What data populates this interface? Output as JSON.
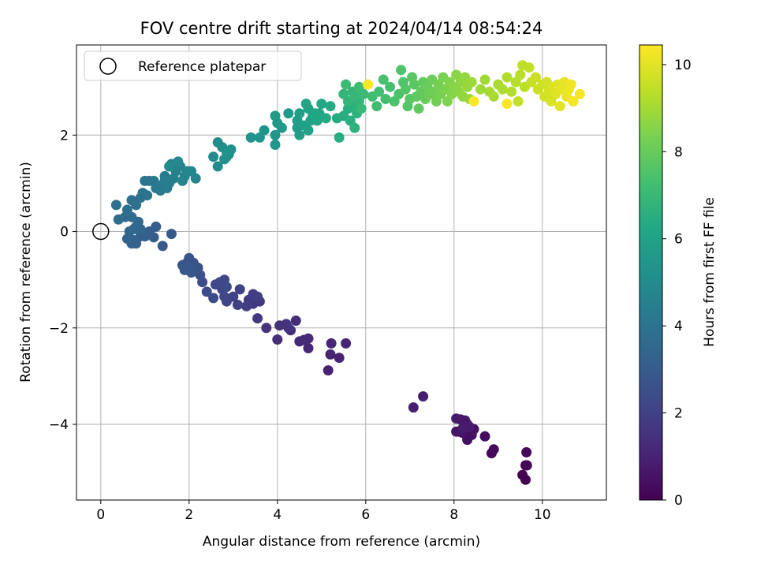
{
  "chart_data": {
    "type": "scatter",
    "title": "FOV centre drift starting at 2024/04/14 08:54:24",
    "xlabel": "Angular distance from reference (arcmin)",
    "ylabel": "Rotation from reference (arcmin)",
    "xlim": [
      -0.55,
      11.45
    ],
    "ylim": [
      -5.57,
      3.87
    ],
    "xticks": [
      0,
      2,
      4,
      6,
      8,
      10
    ],
    "yticks": [
      2,
      0,
      -2,
      -4
    ],
    "ytick_labels": [
      "2",
      "0",
      "−2",
      "−4"
    ],
    "grid": true,
    "legend": {
      "placement": "upper-left",
      "label": "Reference platepar"
    },
    "reference_point": {
      "x": 0,
      "y": 0
    },
    "colorbar": {
      "label": "Hours from first FF file",
      "range": [
        0,
        10.45
      ],
      "ticks": [
        0,
        2,
        4,
        6,
        8,
        10
      ],
      "colormap": "viridis"
    },
    "series": [
      {
        "points": [
          [
            9.62,
            -5.15
          ],
          [
            9.55,
            -5.05
          ],
          [
            9.65,
            -4.85
          ],
          [
            9.62,
            -4.85
          ],
          [
            9.64,
            -4.58
          ],
          [
            8.85,
            -4.6
          ],
          [
            8.9,
            -4.52
          ],
          [
            8.7,
            -4.25
          ],
          [
            8.3,
            -4.32
          ],
          [
            8.4,
            -4.22
          ],
          [
            8.45,
            -4.1
          ],
          [
            8.1,
            -4.15
          ],
          [
            8.2,
            -4.18
          ],
          [
            8.05,
            -4.15
          ],
          [
            8.3,
            -4.0
          ],
          [
            8.15,
            -3.9
          ],
          [
            8.25,
            -3.92
          ],
          [
            8.35,
            -4.05
          ],
          [
            8.05,
            -3.88
          ],
          [
            8.2,
            -4.08
          ],
          [
            7.3,
            -3.42
          ],
          [
            7.08,
            -3.65
          ],
          [
            5.15,
            -2.88
          ],
          [
            5.4,
            -2.62
          ],
          [
            5.2,
            -2.55
          ],
          [
            5.22,
            -2.32
          ],
          [
            5.55,
            -2.32
          ],
          [
            4.7,
            -2.42
          ],
          [
            4.5,
            -2.28
          ],
          [
            4.6,
            -2.25
          ],
          [
            4.7,
            -2.22
          ],
          [
            4.42,
            -1.85
          ],
          [
            4.0,
            -2.24
          ],
          [
            4.3,
            -2.05
          ],
          [
            4.2,
            -1.92
          ],
          [
            4.05,
            -1.95
          ],
          [
            4.25,
            -2.0
          ],
          [
            3.75,
            -2.0
          ],
          [
            3.55,
            -1.8
          ],
          [
            3.6,
            -1.45
          ],
          [
            3.45,
            -1.5
          ],
          [
            3.5,
            -1.38
          ],
          [
            3.35,
            -1.42
          ],
          [
            3.3,
            -1.55
          ],
          [
            3.45,
            -1.3
          ],
          [
            3.55,
            -1.35
          ],
          [
            3.1,
            -1.52
          ],
          [
            3.15,
            -1.2
          ],
          [
            3.0,
            -1.35
          ],
          [
            2.85,
            -1.45
          ],
          [
            2.8,
            -1.35
          ],
          [
            2.6,
            -1.1
          ],
          [
            2.75,
            -1.2
          ],
          [
            2.7,
            -1.05
          ],
          [
            2.8,
            -1.0
          ],
          [
            2.85,
            -1.15
          ],
          [
            2.55,
            -1.38
          ],
          [
            2.4,
            -1.25
          ],
          [
            2.3,
            -1.05
          ],
          [
            2.25,
            -0.9
          ],
          [
            2.2,
            -0.75
          ],
          [
            2.1,
            -0.65
          ],
          [
            2.0,
            -0.55
          ],
          [
            1.95,
            -0.65
          ],
          [
            1.85,
            -0.7
          ],
          [
            1.9,
            -0.8
          ],
          [
            2.0,
            -0.75
          ],
          [
            2.05,
            -0.85
          ],
          [
            1.6,
            -0.05
          ],
          [
            1.4,
            -0.3
          ],
          [
            1.2,
            -0.12
          ],
          [
            1.25,
            0.1
          ],
          [
            1.1,
            0.0
          ],
          [
            1.0,
            -0.1
          ],
          [
            0.9,
            -0.1
          ],
          [
            0.8,
            -0.25
          ],
          [
            0.7,
            -0.25
          ],
          [
            0.75,
            -0.18
          ],
          [
            0.6,
            -0.15
          ],
          [
            0.65,
            0.0
          ],
          [
            0.8,
            0.1
          ],
          [
            0.9,
            0.05
          ],
          [
            0.75,
            0.05
          ],
          [
            0.85,
            0.2
          ],
          [
            0.7,
            0.3
          ],
          [
            0.55,
            0.3
          ],
          [
            0.4,
            0.25
          ],
          [
            0.35,
            0.55
          ],
          [
            0.6,
            0.45
          ],
          [
            0.7,
            0.65
          ],
          [
            0.8,
            0.55
          ],
          [
            0.9,
            0.7
          ],
          [
            0.95,
            0.8
          ],
          [
            1.05,
            0.75
          ],
          [
            1.1,
            1.05
          ],
          [
            1.0,
            1.05
          ],
          [
            1.2,
            1.05
          ],
          [
            1.25,
            0.9
          ],
          [
            1.3,
            0.95
          ],
          [
            1.35,
            0.85
          ],
          [
            1.45,
            1.15
          ],
          [
            1.5,
            0.9
          ],
          [
            1.55,
            1.0
          ],
          [
            1.45,
            1.05
          ],
          [
            1.65,
            1.1
          ],
          [
            1.6,
            1.4
          ],
          [
            1.7,
            1.25
          ],
          [
            1.8,
            1.35
          ],
          [
            1.9,
            1.15
          ],
          [
            1.95,
            1.25
          ],
          [
            2.05,
            1.25
          ],
          [
            2.15,
            1.1
          ],
          [
            1.85,
            1.05
          ],
          [
            1.75,
            1.45
          ],
          [
            1.55,
            1.35
          ],
          [
            2.65,
            1.35
          ],
          [
            2.55,
            1.55
          ],
          [
            2.65,
            1.85
          ],
          [
            2.75,
            1.75
          ],
          [
            2.85,
            1.55
          ],
          [
            2.9,
            1.6
          ],
          [
            2.95,
            1.7
          ],
          [
            2.8,
            1.5
          ],
          [
            2.85,
            1.65
          ],
          [
            3.4,
            1.95
          ],
          [
            3.6,
            1.95
          ],
          [
            3.7,
            2.1
          ],
          [
            3.95,
            1.8
          ],
          [
            3.95,
            2.0
          ],
          [
            4.1,
            2.15
          ],
          [
            4.0,
            2.25
          ],
          [
            3.95,
            2.4
          ],
          [
            4.25,
            2.45
          ],
          [
            4.45,
            2.15
          ],
          [
            4.5,
            2.0
          ],
          [
            4.45,
            2.3
          ],
          [
            4.5,
            2.45
          ],
          [
            4.6,
            2.2
          ],
          [
            4.7,
            2.1
          ],
          [
            4.75,
            2.3
          ],
          [
            4.8,
            2.4
          ],
          [
            4.7,
            2.55
          ],
          [
            4.65,
            2.65
          ],
          [
            4.85,
            2.45
          ],
          [
            4.9,
            2.3
          ],
          [
            4.95,
            2.45
          ],
          [
            5.0,
            2.65
          ],
          [
            5.1,
            2.35
          ],
          [
            5.2,
            2.6
          ],
          [
            5.35,
            2.35
          ],
          [
            5.4,
            1.95
          ],
          [
            5.5,
            2.4
          ],
          [
            5.6,
            2.55
          ],
          [
            5.65,
            2.3
          ],
          [
            5.7,
            2.6
          ],
          [
            5.75,
            2.15
          ],
          [
            5.8,
            2.45
          ],
          [
            5.85,
            2.7
          ],
          [
            5.5,
            2.85
          ],
          [
            5.6,
            2.7
          ],
          [
            5.7,
            2.9
          ],
          [
            5.75,
            2.8
          ],
          [
            5.85,
            2.95
          ],
          [
            5.9,
            2.55
          ],
          [
            5.95,
            2.85
          ],
          [
            5.55,
            3.05
          ],
          [
            5.85,
            3.0
          ],
          [
            6.15,
            2.8
          ],
          [
            6.25,
            2.6
          ],
          [
            6.3,
            2.9
          ],
          [
            6.45,
            2.75
          ],
          [
            6.55,
            3.0
          ],
          [
            6.4,
            3.15
          ],
          [
            6.65,
            2.7
          ],
          [
            6.75,
            2.85
          ],
          [
            6.8,
            3.35
          ],
          [
            6.85,
            3.1
          ],
          [
            6.9,
            2.95
          ],
          [
            6.95,
            2.6
          ],
          [
            7.0,
            2.75
          ],
          [
            7.05,
            3.2
          ],
          [
            7.1,
            3.05
          ],
          [
            7.15,
            2.8
          ],
          [
            7.2,
            2.55
          ],
          [
            7.25,
            2.9
          ],
          [
            7.3,
            3.1
          ],
          [
            7.35,
            2.75
          ],
          [
            7.4,
            3.0
          ],
          [
            7.45,
            2.85
          ],
          [
            7.5,
            3.15
          ],
          [
            7.55,
            2.9
          ],
          [
            7.6,
            2.7
          ],
          [
            7.65,
            3.05
          ],
          [
            7.7,
            2.85
          ],
          [
            7.75,
            3.2
          ],
          [
            7.8,
            2.95
          ],
          [
            7.85,
            2.7
          ],
          [
            7.9,
            3.1
          ],
          [
            7.95,
            2.85
          ],
          [
            8.0,
            3.0
          ],
          [
            8.05,
            3.25
          ],
          [
            8.1,
            2.9
          ],
          [
            8.15,
            3.1
          ],
          [
            8.2,
            2.8
          ],
          [
            8.25,
            3.2
          ],
          [
            8.3,
            3.0
          ],
          [
            8.35,
            2.75
          ],
          [
            8.4,
            3.1
          ],
          [
            8.6,
            2.95
          ],
          [
            8.7,
            3.15
          ],
          [
            8.8,
            2.9
          ],
          [
            8.9,
            2.8
          ],
          [
            9.0,
            3.05
          ],
          [
            9.1,
            2.95
          ],
          [
            9.2,
            3.2
          ],
          [
            9.3,
            2.9
          ],
          [
            9.4,
            3.1
          ],
          [
            9.5,
            3.25
          ],
          [
            9.6,
            3.0
          ],
          [
            9.55,
            3.45
          ],
          [
            9.7,
            3.4
          ],
          [
            9.45,
            2.7
          ],
          [
            9.75,
            3.1
          ],
          [
            9.85,
            3.2
          ],
          [
            9.9,
            2.95
          ],
          [
            10.0,
            3.05
          ],
          [
            10.05,
            2.8
          ],
          [
            10.1,
            3.1
          ],
          [
            10.15,
            2.9
          ],
          [
            10.2,
            2.7
          ],
          [
            10.25,
            3.0
          ],
          [
            10.3,
            2.85
          ],
          [
            10.35,
            3.05
          ],
          [
            10.4,
            2.6
          ],
          [
            10.45,
            2.95
          ],
          [
            10.5,
            3.1
          ],
          [
            10.55,
            2.8
          ],
          [
            10.6,
            2.95
          ],
          [
            10.65,
            3.05
          ],
          [
            10.7,
            2.7
          ],
          [
            10.85,
            2.85
          ],
          [
            9.2,
            2.65
          ],
          [
            8.45,
            2.7
          ],
          [
            6.05,
            3.05
          ]
        ]
      }
    ]
  }
}
